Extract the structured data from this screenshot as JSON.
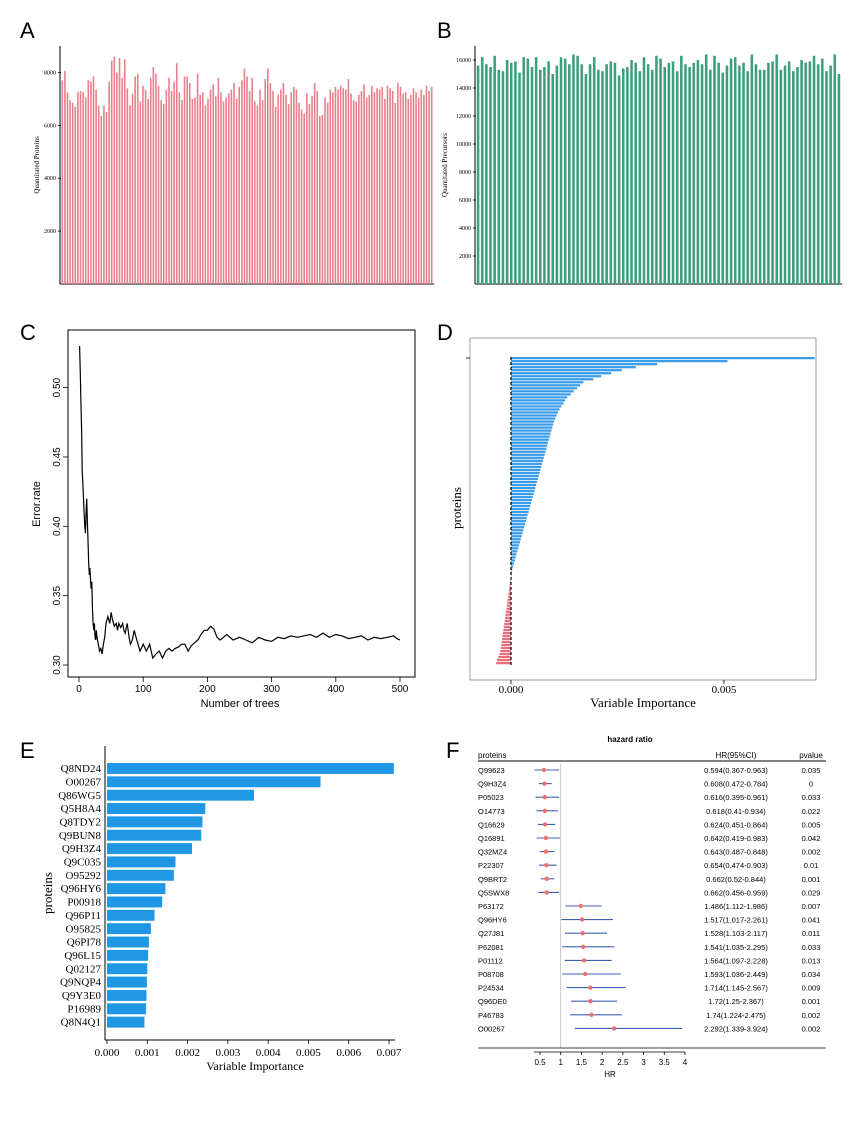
{
  "panels": {
    "a": "A",
    "b": "B",
    "c": "C",
    "d": "D",
    "e": "E",
    "f": "F"
  },
  "chart_data": [
    {
      "id": "A",
      "type": "bar",
      "ylabel": "Quantitated Proteins",
      "ylim": [
        0,
        9000
      ],
      "yticks": [
        2000,
        4000,
        6000,
        8000
      ],
      "color": "#e8808c",
      "values": [
        7700,
        8050,
        7250,
        6950,
        6850,
        6700,
        7250,
        7300,
        7250,
        7050,
        7700,
        7650,
        7850,
        7350,
        6750,
        6350,
        6750,
        6500,
        7650,
        8450,
        8600,
        8000,
        8550,
        7800,
        8500,
        7400,
        6750,
        7200,
        7850,
        7950,
        6900,
        7500,
        7350,
        7000,
        7800,
        8200,
        7950,
        7500,
        6950,
        6800,
        7350,
        7800,
        7300,
        7650,
        8350,
        7250,
        6950,
        7850,
        7850,
        7600,
        7000,
        7050,
        7950,
        7150,
        7250,
        6750,
        7000,
        7350,
        7550,
        7100,
        7800,
        7250,
        6900,
        7050,
        7200,
        7350,
        7600,
        7000,
        7450,
        7700,
        8150,
        7850,
        7300,
        7800,
        6900,
        6750,
        7350,
        6950,
        7750,
        8150,
        7600,
        7300,
        6700,
        7150,
        7350,
        7600,
        7150,
        6800,
        7250,
        7450,
        7350,
        6850,
        6600,
        6450,
        7200,
        6800,
        7100,
        7600,
        7300,
        6350,
        6400,
        7050,
        6850,
        7350,
        7250,
        7450,
        7350,
        7500,
        7400,
        7350,
        7750,
        7200,
        6950,
        6900,
        7150,
        7300,
        7550,
        7050,
        7150,
        7500,
        7250,
        7400,
        7350,
        7450,
        7000,
        7500,
        7400,
        7300,
        6850,
        7600,
        7450,
        7200,
        7250,
        7000,
        7150,
        7400,
        7250,
        7050,
        7350,
        7150,
        7500,
        7300,
        7450
      ]
    },
    {
      "id": "B",
      "type": "bar",
      "ylabel": "Quantitated Precursors",
      "ylim": [
        0,
        17000
      ],
      "yticks": [
        2000,
        4000,
        6000,
        8000,
        10000,
        12000,
        14000,
        16000
      ],
      "color": "#3e9f80",
      "values": [
        15600,
        16200,
        15700,
        15500,
        16300,
        15300,
        15200,
        16000,
        15800,
        15900,
        15100,
        16200,
        16100,
        15500,
        16200,
        15300,
        15500,
        15900,
        15000,
        15600,
        16200,
        16100,
        15700,
        16400,
        16300,
        15700,
        15000,
        15700,
        16200,
        15300,
        15200,
        15700,
        15900,
        15800,
        14900,
        15400,
        15500,
        16000,
        15800,
        15200,
        16200,
        15700,
        15300,
        16300,
        16100,
        15500,
        15800,
        15900,
        15200,
        16300,
        15700,
        15500,
        15800,
        16000,
        15700,
        16400,
        15300,
        16300,
        15800,
        15100,
        15600,
        16100,
        16200,
        15600,
        15800,
        15200,
        16400,
        15700,
        15300,
        15300,
        15800,
        15900,
        16400,
        15300,
        15600,
        15900,
        15200,
        15500,
        16000,
        15800,
        15900,
        16300,
        15700,
        16100,
        15200,
        15600,
        16400,
        15000
      ]
    },
    {
      "id": "C",
      "type": "line",
      "xlabel": "Number of trees",
      "ylabel": "Error.rate",
      "xlim": [
        0,
        500
      ],
      "ylim": [
        0.3,
        0.53
      ],
      "xticks": [
        0,
        100,
        200,
        300,
        400,
        500
      ],
      "yticks": [
        0.3,
        0.35,
        0.4,
        0.45,
        0.5
      ],
      "x": [
        1,
        2,
        3,
        4,
        5,
        6,
        7,
        8,
        9,
        10,
        11,
        12,
        13,
        14,
        15,
        16,
        17,
        18,
        19,
        20,
        21,
        22,
        23,
        24,
        25,
        26,
        27,
        28,
        30,
        32,
        34,
        36,
        38,
        40,
        42,
        45,
        48,
        50,
        52,
        55,
        58,
        60,
        62,
        65,
        68,
        70,
        72,
        75,
        78,
        80,
        83,
        86,
        90,
        95,
        100,
        105,
        110,
        115,
        120,
        125,
        130,
        135,
        140,
        145,
        150,
        155,
        160,
        165,
        170,
        175,
        180,
        185,
        190,
        195,
        200,
        205,
        210,
        215,
        220,
        225,
        230,
        240,
        250,
        260,
        270,
        280,
        290,
        300,
        310,
        320,
        330,
        340,
        350,
        360,
        370,
        380,
        390,
        400,
        410,
        420,
        430,
        440,
        450,
        460,
        470,
        480,
        490,
        495,
        500
      ],
      "y": [
        0.53,
        0.51,
        0.49,
        0.47,
        0.44,
        0.43,
        0.42,
        0.41,
        0.4,
        0.395,
        0.41,
        0.42,
        0.405,
        0.39,
        0.375,
        0.365,
        0.37,
        0.36,
        0.355,
        0.36,
        0.34,
        0.33,
        0.325,
        0.33,
        0.32,
        0.318,
        0.325,
        0.32,
        0.315,
        0.31,
        0.312,
        0.308,
        0.315,
        0.32,
        0.33,
        0.335,
        0.33,
        0.338,
        0.333,
        0.328,
        0.33,
        0.325,
        0.33,
        0.327,
        0.33,
        0.325,
        0.323,
        0.33,
        0.32,
        0.315,
        0.318,
        0.325,
        0.318,
        0.31,
        0.315,
        0.31,
        0.315,
        0.305,
        0.308,
        0.31,
        0.305,
        0.31,
        0.312,
        0.31,
        0.312,
        0.313,
        0.315,
        0.315,
        0.31,
        0.314,
        0.316,
        0.318,
        0.322,
        0.325,
        0.325,
        0.328,
        0.326,
        0.32,
        0.318,
        0.32,
        0.322,
        0.318,
        0.32,
        0.318,
        0.316,
        0.32,
        0.318,
        0.317,
        0.32,
        0.319,
        0.321,
        0.32,
        0.321,
        0.322,
        0.32,
        0.323,
        0.32,
        0.322,
        0.321,
        0.319,
        0.32,
        0.321,
        0.318,
        0.32,
        0.319,
        0.32,
        0.321,
        0.319,
        0.318
      ]
    },
    {
      "id": "D",
      "type": "bar",
      "orientation": "horizontal",
      "xlabel": "Variable Importance",
      "ylabel": "proteins",
      "xlim": [
        -0.0006,
        0.0075
      ],
      "xticks": [
        0.0,
        0.005
      ],
      "xtick_labels": [
        "0.000",
        "0.005"
      ],
      "positive_color": "#3a9be8",
      "negative_color": "#e8707e",
      "values": [
        0.00713,
        0.00508,
        0.00343,
        0.00293,
        0.0026,
        0.00235,
        0.00212,
        0.00193,
        0.0017,
        0.00162,
        0.00155,
        0.00147,
        0.0014,
        0.00132,
        0.00127,
        0.00123,
        0.00118,
        0.00114,
        0.0011,
        0.00107,
        0.00104,
        0.00101,
        0.00099,
        0.00097,
        0.00095,
        0.00093,
        0.00091,
        0.00089,
        0.00087,
        0.00085,
        0.00083,
        0.00081,
        0.00079,
        0.00077,
        0.00075,
        0.00073,
        0.00071,
        0.00069,
        0.00067,
        0.00065,
        0.00063,
        0.00061,
        0.00059,
        0.00057,
        0.00055,
        0.00053,
        0.00051,
        0.00049,
        0.00047,
        0.00045,
        0.00043,
        0.00041,
        0.00039,
        0.00037,
        0.00035,
        0.00033,
        0.00031,
        0.00029,
        0.00027,
        0.00025,
        0.00023,
        0.00021,
        0.00019,
        0.00017,
        0.00015,
        0.00013,
        0.00011,
        9e-05,
        7e-05,
        5e-05,
        3e-05,
        2e-05,
        1e-05,
        -1e-05,
        -2e-05,
        -3e-05,
        -4e-05,
        -5e-05,
        -6e-05,
        -7e-05,
        -8e-05,
        -9e-05,
        -0.0001,
        -0.00011,
        -0.00012,
        -0.00013,
        -0.00014,
        -0.00015,
        -0.00016,
        -0.00017,
        -0.00018,
        -0.00019,
        -0.0002,
        -0.00021,
        -0.00022,
        -0.00023,
        -0.00024,
        -0.00025,
        -0.00027,
        -0.0003,
        -0.00033,
        -0.00035
      ]
    },
    {
      "id": "E",
      "type": "bar",
      "orientation": "horizontal",
      "xlabel": "Variable Importance",
      "ylabel": "proteins",
      "xlim": [
        0,
        0.0072
      ],
      "xticks": [
        "0.000",
        "0.001",
        "0.002",
        "0.003",
        "0.004",
        "0.005",
        "0.006",
        "0.007"
      ],
      "color": "#1f97e4",
      "categories": [
        "Q8ND24",
        "O00267",
        "Q86WG5",
        "Q5H8A4",
        "Q8TDY2",
        "Q9BUN8",
        "Q9H3Z4",
        "Q9C035",
        "O95292",
        "Q96HY6",
        "P00918",
        "Q96P11",
        "O95825",
        "Q6PI78",
        "Q96L15",
        "Q02127",
        "Q9NQP4",
        "Q9Y3E0",
        "P16989",
        "Q8N4Q1"
      ],
      "values": [
        0.00712,
        0.0053,
        0.00365,
        0.00244,
        0.00237,
        0.00234,
        0.00211,
        0.0017,
        0.00166,
        0.00145,
        0.00137,
        0.00118,
        0.00109,
        0.00104,
        0.00102,
        0.001,
        0.00099,
        0.00098,
        0.00097,
        0.00093
      ]
    },
    {
      "id": "F",
      "type": "table",
      "title": "hazard ratio",
      "headers": [
        "proteins",
        "HR(95%CI)",
        "pvalue"
      ],
      "xlabel": "HR",
      "xlim": [
        0.3,
        4.0
      ],
      "xticks": [
        "0.5",
        "1",
        "1.5",
        "2",
        "2.5",
        "3",
        "3.5",
        "4"
      ],
      "reference_line": 1,
      "point_color": "#ee6f6f",
      "ci_color": "#3d5fb0",
      "rows": [
        {
          "protein": "Q99623",
          "hr": 0.594,
          "lo": 0.367,
          "hi": 0.963,
          "text": "0.594(0.367-0.963)",
          "p": "0.035"
        },
        {
          "protein": "Q9H3Z4",
          "hr": 0.608,
          "lo": 0.472,
          "hi": 0.784,
          "text": "0.608(0.472-0.784)",
          "p": "0"
        },
        {
          "protein": "P05023",
          "hr": 0.616,
          "lo": 0.395,
          "hi": 0.961,
          "text": "0.616(0.395-0.961)",
          "p": "0.033"
        },
        {
          "protein": "O14773",
          "hr": 0.618,
          "lo": 0.41,
          "hi": 0.934,
          "text": "0.618(0.41-0.934)",
          "p": "0.022"
        },
        {
          "protein": "Q16629",
          "hr": 0.624,
          "lo": 0.451,
          "hi": 0.864,
          "text": "0.624(0.451-0.864)",
          "p": "0.005"
        },
        {
          "protein": "Q16891",
          "hr": 0.642,
          "lo": 0.419,
          "hi": 0.983,
          "text": "0.642(0.419-0.983)",
          "p": "0.042"
        },
        {
          "protein": "Q32MZ4",
          "hr": 0.643,
          "lo": 0.487,
          "hi": 0.848,
          "text": "0.643(0.487-0.848)",
          "p": "0.002"
        },
        {
          "protein": "P22307",
          "hr": 0.654,
          "lo": 0.474,
          "hi": 0.903,
          "text": "0.654(0.474-0.903)",
          "p": "0.01"
        },
        {
          "protein": "Q9BRT2",
          "hr": 0.662,
          "lo": 0.52,
          "hi": 0.844,
          "text": "0.662(0.52-0.844)",
          "p": "0.001"
        },
        {
          "protein": "Q5SWX8",
          "hr": 0.662,
          "lo": 0.456,
          "hi": 0.959,
          "text": "0.662(0.456-0.959)",
          "p": "0.029"
        },
        {
          "protein": "P63172",
          "hr": 1.486,
          "lo": 1.112,
          "hi": 1.986,
          "text": "1.486(1.112-1.986)",
          "p": "0.007"
        },
        {
          "protein": "Q96HY6",
          "hr": 1.517,
          "lo": 1.017,
          "hi": 2.261,
          "text": "1.517(1.017-2.261)",
          "p": "0.041"
        },
        {
          "protein": "Q27J81",
          "hr": 1.528,
          "lo": 1.103,
          "hi": 2.117,
          "text": "1.528(1.103-2.117)",
          "p": "0.011"
        },
        {
          "protein": "P62081",
          "hr": 1.541,
          "lo": 1.035,
          "hi": 2.295,
          "text": "1.541(1.035-2.295)",
          "p": "0.033"
        },
        {
          "protein": "P01112",
          "hr": 1.564,
          "lo": 1.097,
          "hi": 2.228,
          "text": "1.564(1.097-2.228)",
          "p": "0.013"
        },
        {
          "protein": "P08708",
          "hr": 1.593,
          "lo": 1.036,
          "hi": 2.449,
          "text": "1.593(1.036-2.449)",
          "p": "0.034"
        },
        {
          "protein": "P24534",
          "hr": 1.714,
          "lo": 1.145,
          "hi": 2.567,
          "text": "1.714(1.145-2.567)",
          "p": "0.009"
        },
        {
          "protein": "Q96DE0",
          "hr": 1.72,
          "lo": 1.25,
          "hi": 2.367,
          "text": "1.72(1.25-2.367)",
          "p": "0.001"
        },
        {
          "protein": "P46783",
          "hr": 1.74,
          "lo": 1.224,
          "hi": 2.475,
          "text": "1.74(1.224-2.475)",
          "p": "0.002"
        },
        {
          "protein": "O00267",
          "hr": 2.292,
          "lo": 1.339,
          "hi": 3.924,
          "text": "2.292(1.339-3.924)",
          "p": "0.002"
        }
      ]
    }
  ]
}
